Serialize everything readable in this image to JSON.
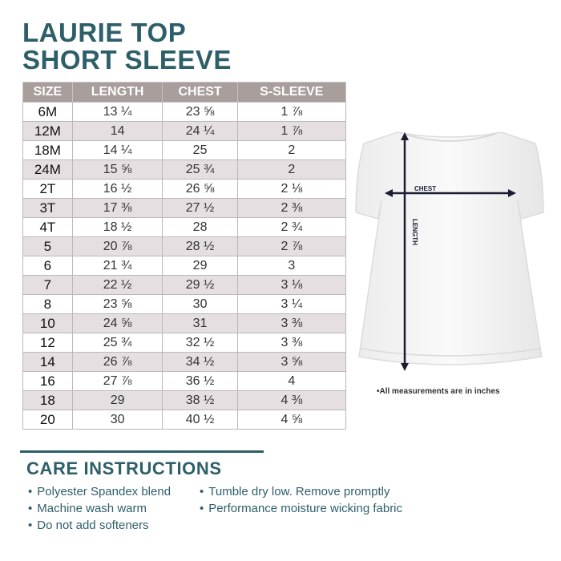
{
  "title": {
    "line1": "LAURIE TOP",
    "line2": "SHORT SLEEVE"
  },
  "colors": {
    "brand": "#2e5f69",
    "header_bg": "#a89e9b",
    "alt_row": "#e5dfe2"
  },
  "table": {
    "headers": [
      "SIZE",
      "LENGTH",
      "CHEST",
      "S-SLEEVE"
    ],
    "rows": [
      [
        "6M",
        "13 ¼",
        "23 ⅝",
        "1 ⅞"
      ],
      [
        "12M",
        "14",
        "24 ¼",
        "1 ⅞"
      ],
      [
        "18M",
        "14 ¼",
        "25",
        "2"
      ],
      [
        "24M",
        "15 ⅝",
        "25 ¾",
        "2"
      ],
      [
        "2T",
        "16 ½",
        "26 ⅝",
        "2 ⅛"
      ],
      [
        "3T",
        "17 ⅜",
        "27 ½",
        "2 ⅜"
      ],
      [
        "4T",
        "18 ½",
        "28",
        "2 ¾"
      ],
      [
        "5",
        "20 ⅞",
        "28 ½",
        "2 ⅞"
      ],
      [
        "6",
        "21 ¾",
        "29",
        "3"
      ],
      [
        "7",
        "22 ½",
        "29 ½",
        "3 ⅛"
      ],
      [
        "8",
        "23 ⅝",
        "30",
        "3 ¼"
      ],
      [
        "10",
        "24 ⅝",
        "31",
        "3 ⅜"
      ],
      [
        "12",
        "25 ¾",
        "32 ½",
        "3 ⅜"
      ],
      [
        "14",
        "26 ⅞",
        "34 ½",
        "3 ⅝"
      ],
      [
        "16",
        "27 ⅞",
        "36 ½",
        "4"
      ],
      [
        "18",
        "29",
        "38 ½",
        "4 ⅜"
      ],
      [
        "20",
        "30",
        "40 ½",
        "4 ⅝"
      ]
    ]
  },
  "diagram": {
    "chest_label": "CHEST",
    "length_label": "LENGTH",
    "note": "•All measurements are in inches"
  },
  "care": {
    "title": "CARE INSTRUCTIONS",
    "items": [
      "Polyester Spandex blend",
      "Machine wash warm",
      "Do not add softeners",
      "Tumble dry low. Remove promptly",
      "Performance moisture wicking fabric"
    ]
  }
}
